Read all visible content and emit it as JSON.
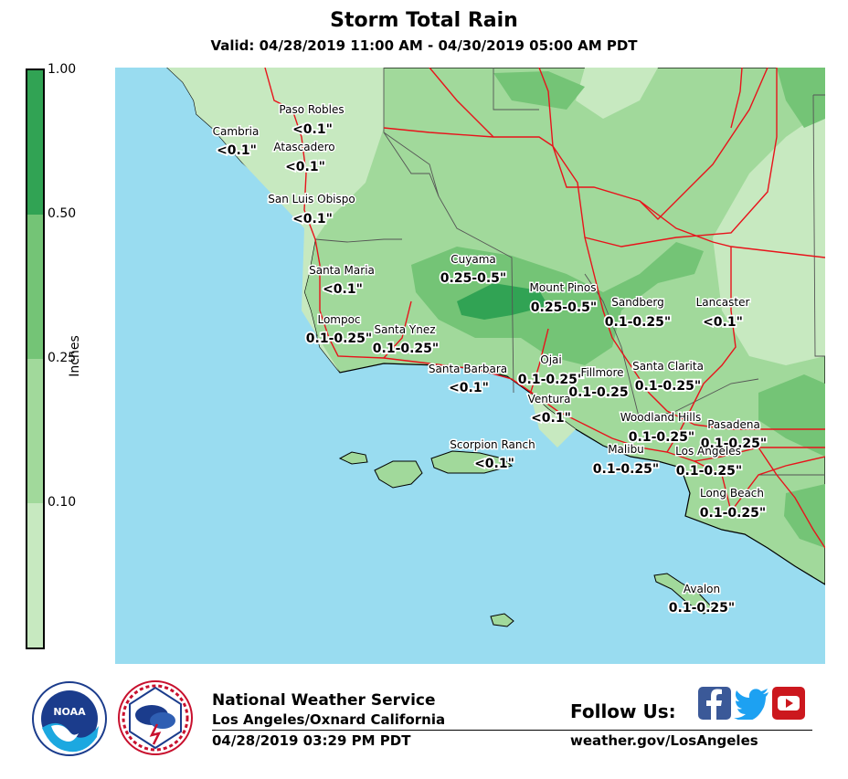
{
  "header": {
    "title": "Storm Total Rain",
    "subtitle": "Valid: 04/28/2019 11:00 AM - 04/30/2019 05:00 AM PDT"
  },
  "colorbar": {
    "label": "Inches",
    "ticks": [
      "1.00",
      "0.50",
      "0.25",
      "0.10"
    ],
    "colors": [
      "#c7e9c0",
      "#a1d99b",
      "#74c476",
      "#31a354"
    ]
  },
  "map": {
    "ocean_color": "#99dcf0",
    "road_color": "#e8131b",
    "locations": [
      {
        "name": "Paso Robles",
        "value": "<0.1\""
      },
      {
        "name": "Cambria",
        "value": "<0.1\""
      },
      {
        "name": "Atascadero",
        "value": "<0.1\""
      },
      {
        "name": "San Luis Obispo",
        "value": "<0.1\""
      },
      {
        "name": "Cuyama",
        "value": "0.25-0.5\""
      },
      {
        "name": "Santa Maria",
        "value": "<0.1\""
      },
      {
        "name": "Mount Pinos",
        "value": "0.25-0.5\""
      },
      {
        "name": "Sandberg",
        "value": "0.1-0.25\""
      },
      {
        "name": "Lancaster",
        "value": "<0.1\""
      },
      {
        "name": "Lompoc",
        "value": "0.1-0.25\""
      },
      {
        "name": "Santa Ynez",
        "value": "0.1-0.25\""
      },
      {
        "name": "Santa Barbara",
        "value": "<0.1\""
      },
      {
        "name": "Ojai",
        "value": "0.1-0.25\""
      },
      {
        "name": "Fillmore",
        "value": "0.1-0.25"
      },
      {
        "name": "Santa Clarita",
        "value": "0.1-0.25\""
      },
      {
        "name": "Ventura",
        "value": "<0.1\""
      },
      {
        "name": "Woodland Hills",
        "value": "0.1-0.25\""
      },
      {
        "name": "Pasadena",
        "value": "0.1-0.25\""
      },
      {
        "name": "Scorpion Ranch",
        "value": "<0.1\""
      },
      {
        "name": "Malibu",
        "value": "0.1-0.25\""
      },
      {
        "name": "Los Angeles",
        "value": "0.1-0.25\""
      },
      {
        "name": "Long Beach",
        "value": "0.1-0.25\""
      },
      {
        "name": "Avalon",
        "value": "0.1-0.25\""
      }
    ]
  },
  "footer": {
    "org": "National Weather Service",
    "office": "Los Angeles/Oxnard California",
    "issued": "04/28/2019 03:29 PM PDT",
    "follow": "Follow Us:",
    "website": "weather.gov/LosAngeles",
    "noaa_logo": "noaa-logo",
    "nws_logo": "nws-logo",
    "facebook_icon": "facebook-icon",
    "twitter_icon": "twitter-icon",
    "youtube_icon": "youtube-icon",
    "brand_colors": {
      "facebook": "#3b5998",
      "twitter": "#1da1f2",
      "youtube": "#cc181e"
    }
  }
}
